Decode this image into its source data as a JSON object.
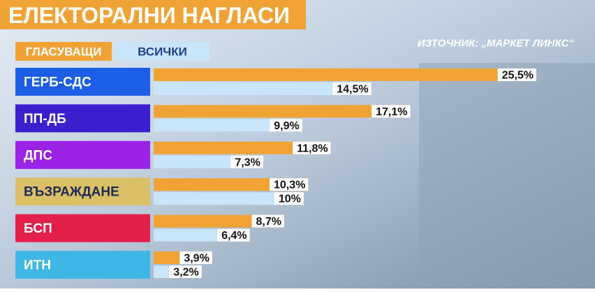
{
  "chart_data": {
    "type": "bar",
    "orientation": "horizontal",
    "title": "ЕЛЕКТОРАЛНИ НАГЛАСИ",
    "source": "ИЗТОЧНИК: „МАРКЕТ ЛИНКС“",
    "categories": [
      "ГЕРБ-СДС",
      "ПП-ДБ",
      "ДПС",
      "ВЪЗРАЖДАНЕ",
      "БСП",
      "ИТН"
    ],
    "category_colors": [
      "#1d5ee6",
      "#3b1fcf",
      "#9c22e6",
      "#dcc067",
      "#e31f4b",
      "#3fb7e6"
    ],
    "series": [
      {
        "name": "ГЛАСУВАЩИ",
        "color": "#f1a235",
        "values": [
          25.5,
          17.1,
          11.8,
          10.3,
          8.7,
          3.9
        ],
        "value_labels": [
          "25,5%",
          "17,1%",
          "11,8%",
          "10,3%",
          "8,7%",
          "3,9%"
        ]
      },
      {
        "name": "ВСИЧКИ",
        "color": "#c9e5f9",
        "values": [
          14.5,
          9.9,
          7.3,
          10,
          6.4,
          3.2
        ],
        "value_labels": [
          "14,5%",
          "9,9%",
          "7,3%",
          "10%",
          "6,4%",
          "3,2%"
        ]
      }
    ]
  }
}
